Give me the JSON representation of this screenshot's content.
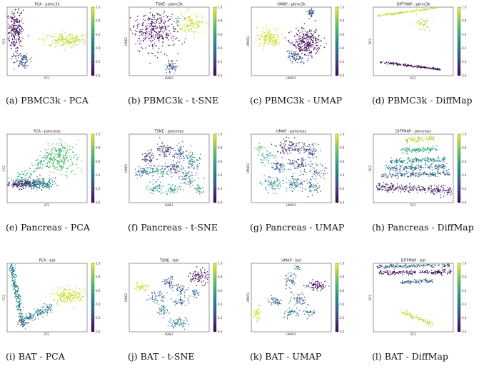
{
  "figure": {
    "colormap": [
      "#440154",
      "#3b528b",
      "#21918c",
      "#5ec962",
      "#fde725"
    ],
    "colorbar_ticks": [
      "1.0",
      "0.8",
      "0.6",
      "0.4",
      "0.2",
      "0.0"
    ]
  },
  "chart_data": [
    {
      "type": "scatter",
      "title": "PCA - pbmc3k",
      "xlabel": "PC1",
      "ylabel": "PC2",
      "caption": "(a) PBMC3k - PCA",
      "clusters": [
        {
          "cx": -0.8,
          "cy": 0.3,
          "sx": 0.1,
          "sy": 0.35,
          "n": 260,
          "v": 0.05
        },
        {
          "cx": -0.62,
          "cy": -0.55,
          "sx": 0.09,
          "sy": 0.1,
          "n": 80,
          "v": 0.25
        },
        {
          "cx": 0.45,
          "cy": 0.05,
          "sx": 0.28,
          "sy": 0.1,
          "n": 200,
          "v": 0.9
        }
      ]
    },
    {
      "type": "scatter",
      "title": "TSNE - pbmc3k",
      "xlabel": "tSNE1",
      "ylabel": "tSNE2",
      "caption": "(b) PBMC3k - t-SNE",
      "clusters": [
        {
          "cx": -0.35,
          "cy": 0.3,
          "sx": 0.28,
          "sy": 0.3,
          "n": 340,
          "v": 0.03
        },
        {
          "cx": 0.55,
          "cy": 0.5,
          "sx": 0.15,
          "sy": 0.15,
          "n": 140,
          "v": 0.92
        },
        {
          "cx": 0.05,
          "cy": -0.72,
          "sx": 0.07,
          "sy": 0.08,
          "n": 60,
          "v": 0.25
        },
        {
          "cx": 0.22,
          "cy": 0.6,
          "sx": 0.03,
          "sy": 0.05,
          "n": 12,
          "v": 0.5
        }
      ]
    },
    {
      "type": "scatter",
      "title": "UMAP - pbmc3k",
      "xlabel": "UMAP1",
      "ylabel": "UMAP2",
      "caption": "(c) PBMC3k - UMAP",
      "clusters": [
        {
          "cx": -0.55,
          "cy": 0.1,
          "sx": 0.15,
          "sy": 0.15,
          "n": 160,
          "v": 0.93
        },
        {
          "cx": 0.38,
          "cy": -0.05,
          "sx": 0.18,
          "sy": 0.2,
          "n": 280,
          "v": 0.02
        },
        {
          "cx": 0.1,
          "cy": -0.45,
          "sx": 0.09,
          "sy": 0.1,
          "n": 70,
          "v": 0.25
        },
        {
          "cx": 0.5,
          "cy": 0.85,
          "sx": 0.04,
          "sy": 0.06,
          "n": 35,
          "v": 0.25
        }
      ]
    },
    {
      "type": "scatter",
      "title": "DIFFMAP - pbmc3k",
      "xlabel": "DC1",
      "ylabel": "DC2",
      "caption": "(d) PBMC3k - DiffMap",
      "lines": [
        {
          "x0": -0.9,
          "y0": 0.75,
          "x1": 0.6,
          "y1": 0.98,
          "w": 0.015,
          "n": 140,
          "v": 0.92
        },
        {
          "x0": -0.85,
          "y0": -0.6,
          "x1": 0.7,
          "y1": -0.82,
          "w": 0.015,
          "n": 180,
          "v": 0.05
        },
        {
          "x0": 0.05,
          "y0": 0.6,
          "x1": 0.4,
          "y1": 0.4,
          "w": 0.08,
          "n": 40,
          "v": 0.9
        }
      ]
    },
    {
      "type": "scatter",
      "title": "PCA - pancreas",
      "xlabel": "PC1",
      "ylabel": "PC2",
      "caption": "(e) Pancreas - PCA",
      "clusters": [
        {
          "cx": -0.6,
          "cy": -0.45,
          "sx": 0.22,
          "sy": 0.06,
          "n": 200,
          "v": 0.1
        },
        {
          "cx": -0.2,
          "cy": -0.45,
          "sx": 0.2,
          "sy": 0.08,
          "n": 180,
          "v": 0.45
        },
        {
          "cx": 0.35,
          "cy": 0.3,
          "sx": 0.22,
          "sy": 0.22,
          "n": 220,
          "v": 0.7
        }
      ],
      "lines": [
        {
          "x0": -0.85,
          "y0": -0.45,
          "x1": 0.4,
          "y1": 0.6,
          "w": 0.1,
          "n": 160,
          "v": 0.6
        }
      ]
    },
    {
      "type": "scatter",
      "title": "TSNE - pancreas",
      "xlabel": "tSNE1",
      "ylabel": "tSNE2",
      "caption": "(f) Pancreas - t-SNE",
      "clusters": [
        {
          "cx": -0.5,
          "cy": 0.3,
          "sx": 0.1,
          "sy": 0.12,
          "n": 60,
          "v": 0.2
        },
        {
          "cx": -0.1,
          "cy": 0.55,
          "sx": 0.12,
          "sy": 0.12,
          "n": 70,
          "v": 0.15
        },
        {
          "cx": 0.3,
          "cy": 0.45,
          "sx": 0.1,
          "sy": 0.12,
          "n": 60,
          "v": 0.3
        },
        {
          "cx": 0.6,
          "cy": 0.2,
          "sx": 0.1,
          "sy": 0.1,
          "n": 55,
          "v": 0.4
        },
        {
          "cx": -0.7,
          "cy": -0.1,
          "sx": 0.08,
          "sy": 0.1,
          "n": 45,
          "v": 0.35
        },
        {
          "cx": -0.3,
          "cy": -0.1,
          "sx": 0.12,
          "sy": 0.1,
          "n": 60,
          "v": 0.45
        },
        {
          "cx": 0.1,
          "cy": 0.0,
          "sx": 0.12,
          "sy": 0.1,
          "n": 60,
          "v": 0.25
        },
        {
          "cx": 0.45,
          "cy": -0.3,
          "sx": 0.12,
          "sy": 0.12,
          "n": 60,
          "v": 0.4
        },
        {
          "cx": -0.35,
          "cy": -0.55,
          "sx": 0.1,
          "sy": 0.1,
          "n": 50,
          "v": 0.5
        },
        {
          "cx": 0.1,
          "cy": -0.6,
          "sx": 0.1,
          "sy": 0.08,
          "n": 45,
          "v": 0.55
        },
        {
          "cx": 0.75,
          "cy": -0.6,
          "sx": 0.08,
          "sy": 0.08,
          "n": 30,
          "v": 0.55
        }
      ]
    },
    {
      "type": "scatter",
      "title": "UMAP - pancreas",
      "xlabel": "UMAP1",
      "ylabel": "UMAP2",
      "caption": "(g) Pancreas - UMAP",
      "clusters": [
        {
          "cx": -0.05,
          "cy": 0.6,
          "sx": 0.15,
          "sy": 0.12,
          "n": 90,
          "v": 0.1
        },
        {
          "cx": 0.45,
          "cy": 0.5,
          "sx": 0.12,
          "sy": 0.12,
          "n": 70,
          "v": 0.2
        },
        {
          "cx": -0.6,
          "cy": 0.35,
          "sx": 0.08,
          "sy": 0.1,
          "n": 40,
          "v": 0.55
        },
        {
          "cx": -0.35,
          "cy": 0.05,
          "sx": 0.1,
          "sy": 0.1,
          "n": 50,
          "v": 0.3
        },
        {
          "cx": 0.2,
          "cy": 0.1,
          "sx": 0.15,
          "sy": 0.12,
          "n": 70,
          "v": 0.25
        },
        {
          "cx": 0.65,
          "cy": -0.1,
          "sx": 0.1,
          "sy": 0.1,
          "n": 45,
          "v": 0.35
        },
        {
          "cx": -0.45,
          "cy": -0.45,
          "sx": 0.14,
          "sy": 0.12,
          "n": 70,
          "v": 0.45
        },
        {
          "cx": 0.1,
          "cy": -0.45,
          "sx": 0.14,
          "sy": 0.12,
          "n": 70,
          "v": 0.4
        },
        {
          "cx": 0.55,
          "cy": -0.55,
          "sx": 0.1,
          "sy": 0.1,
          "n": 45,
          "v": 0.3
        },
        {
          "cx": -0.8,
          "cy": 0.6,
          "sx": 0.04,
          "sy": 0.05,
          "n": 18,
          "v": 0.7
        }
      ]
    },
    {
      "type": "scatter",
      "title": "DIFFMAP - pancreas",
      "xlabel": "DC1",
      "ylabel": "DC2",
      "caption": "(h) Pancreas - DiffMap",
      "lines": [
        {
          "x0": -0.2,
          "y0": 0.8,
          "x1": 0.5,
          "y1": 0.9,
          "w": 0.04,
          "n": 90,
          "v": 0.88
        },
        {
          "x0": -0.3,
          "y0": 0.5,
          "x1": 0.6,
          "y1": 0.58,
          "w": 0.04,
          "n": 110,
          "v": 0.6
        },
        {
          "x0": -0.6,
          "y0": 0.2,
          "x1": 0.8,
          "y1": 0.28,
          "w": 0.04,
          "n": 150,
          "v": 0.45
        },
        {
          "x0": -0.7,
          "y0": 0.0,
          "x1": 0.85,
          "y1": 0.05,
          "w": 0.04,
          "n": 170,
          "v": 0.35
        },
        {
          "x0": -0.8,
          "y0": -0.2,
          "x1": 0.9,
          "y1": -0.15,
          "w": 0.04,
          "n": 170,
          "v": 0.3
        },
        {
          "x0": -0.9,
          "y0": -0.55,
          "x1": 0.95,
          "y1": -0.65,
          "w": 0.06,
          "n": 260,
          "v": 0.1
        }
      ]
    },
    {
      "type": "scatter",
      "title": "PCA - bat",
      "xlabel": "PC1",
      "ylabel": "PC2",
      "caption": "(i) BAT - PCA",
      "lines": [
        {
          "x0": -0.9,
          "y0": 0.95,
          "x1": -0.6,
          "y1": -0.8,
          "w": 0.07,
          "n": 230,
          "v": 0.45
        },
        {
          "x0": -0.55,
          "y0": -0.6,
          "x1": 0.1,
          "y1": -0.3,
          "w": 0.07,
          "n": 130,
          "v": 0.4
        }
      ],
      "clusters": [
        {
          "cx": 0.55,
          "cy": 0.05,
          "sx": 0.2,
          "sy": 0.12,
          "n": 190,
          "v": 0.92
        },
        {
          "cx": -0.62,
          "cy": -0.75,
          "sx": 0.06,
          "sy": 0.06,
          "n": 25,
          "v": 0.1
        }
      ]
    },
    {
      "type": "scatter",
      "title": "TSNE - bat",
      "xlabel": "tSNE1",
      "ylabel": "tSNE2",
      "caption": "(j) BAT - t-SNE",
      "clusters": [
        {
          "cx": -0.7,
          "cy": 0.3,
          "sx": 0.1,
          "sy": 0.06,
          "n": 45,
          "v": 0.92
        },
        {
          "cx": 0.75,
          "cy": 0.6,
          "sx": 0.12,
          "sy": 0.12,
          "n": 90,
          "v": 0.03
        },
        {
          "cx": 0.0,
          "cy": 0.45,
          "sx": 0.08,
          "sy": 0.08,
          "n": 40,
          "v": 0.3
        },
        {
          "cx": 0.3,
          "cy": 0.25,
          "sx": 0.08,
          "sy": 0.08,
          "n": 35,
          "v": 0.25
        },
        {
          "cx": -0.3,
          "cy": 0.0,
          "sx": 0.1,
          "sy": 0.1,
          "n": 45,
          "v": 0.35
        },
        {
          "cx": 0.3,
          "cy": -0.1,
          "sx": 0.1,
          "sy": 0.08,
          "n": 40,
          "v": 0.3
        },
        {
          "cx": -0.15,
          "cy": -0.35,
          "sx": 0.08,
          "sy": 0.08,
          "n": 35,
          "v": 0.4
        },
        {
          "cx": 0.25,
          "cy": -0.75,
          "sx": 0.12,
          "sy": 0.08,
          "n": 60,
          "v": 0.4
        },
        {
          "cx": 0.65,
          "cy": 0.1,
          "sx": 0.06,
          "sy": 0.06,
          "n": 25,
          "v": 0.35
        }
      ]
    },
    {
      "type": "scatter",
      "title": "UMAP - bat",
      "xlabel": "UMAP1",
      "ylabel": "UMAP2",
      "caption": "(k) BAT - UMAP",
      "clusters": [
        {
          "cx": -0.85,
          "cy": -0.5,
          "sx": 0.04,
          "sy": 0.12,
          "n": 50,
          "v": 0.93
        },
        {
          "cx": 0.6,
          "cy": 0.35,
          "sx": 0.12,
          "sy": 0.06,
          "n": 80,
          "v": 0.03
        },
        {
          "cx": 0.0,
          "cy": 0.5,
          "sx": 0.08,
          "sy": 0.1,
          "n": 40,
          "v": 0.3
        },
        {
          "cx": -0.4,
          "cy": -0.1,
          "sx": 0.1,
          "sy": 0.08,
          "n": 45,
          "v": 0.35
        },
        {
          "cx": 0.2,
          "cy": -0.05,
          "sx": 0.1,
          "sy": 0.1,
          "n": 45,
          "v": 0.3
        },
        {
          "cx": 0.0,
          "cy": -0.45,
          "sx": 0.1,
          "sy": 0.08,
          "n": 40,
          "v": 0.4
        },
        {
          "cx": 0.45,
          "cy": -0.4,
          "sx": 0.08,
          "sy": 0.08,
          "n": 30,
          "v": 0.35
        },
        {
          "cx": 0.15,
          "cy": 0.85,
          "sx": 0.04,
          "sy": 0.04,
          "n": 12,
          "v": 0.35
        }
      ]
    },
    {
      "type": "scatter",
      "title": "DIFFMAP - bat",
      "xlabel": "DC1",
      "ylabel": "DC2",
      "caption": "(l) BAT - DiffMap",
      "lines": [
        {
          "x0": -0.9,
          "y0": 0.9,
          "x1": 0.9,
          "y1": 0.95,
          "w": 0.03,
          "n": 170,
          "v": 0.3
        },
        {
          "x0": -0.85,
          "y0": 0.72,
          "x1": 0.95,
          "y1": 0.75,
          "w": 0.03,
          "n": 180,
          "v": 0.05
        },
        {
          "x0": -0.3,
          "y0": 0.45,
          "x1": 0.5,
          "y1": 0.48,
          "w": 0.03,
          "n": 90,
          "v": 0.35
        },
        {
          "x0": -0.3,
          "y0": -0.4,
          "x1": 0.5,
          "y1": -0.8,
          "w": 0.04,
          "n": 100,
          "v": 0.9
        }
      ]
    }
  ]
}
